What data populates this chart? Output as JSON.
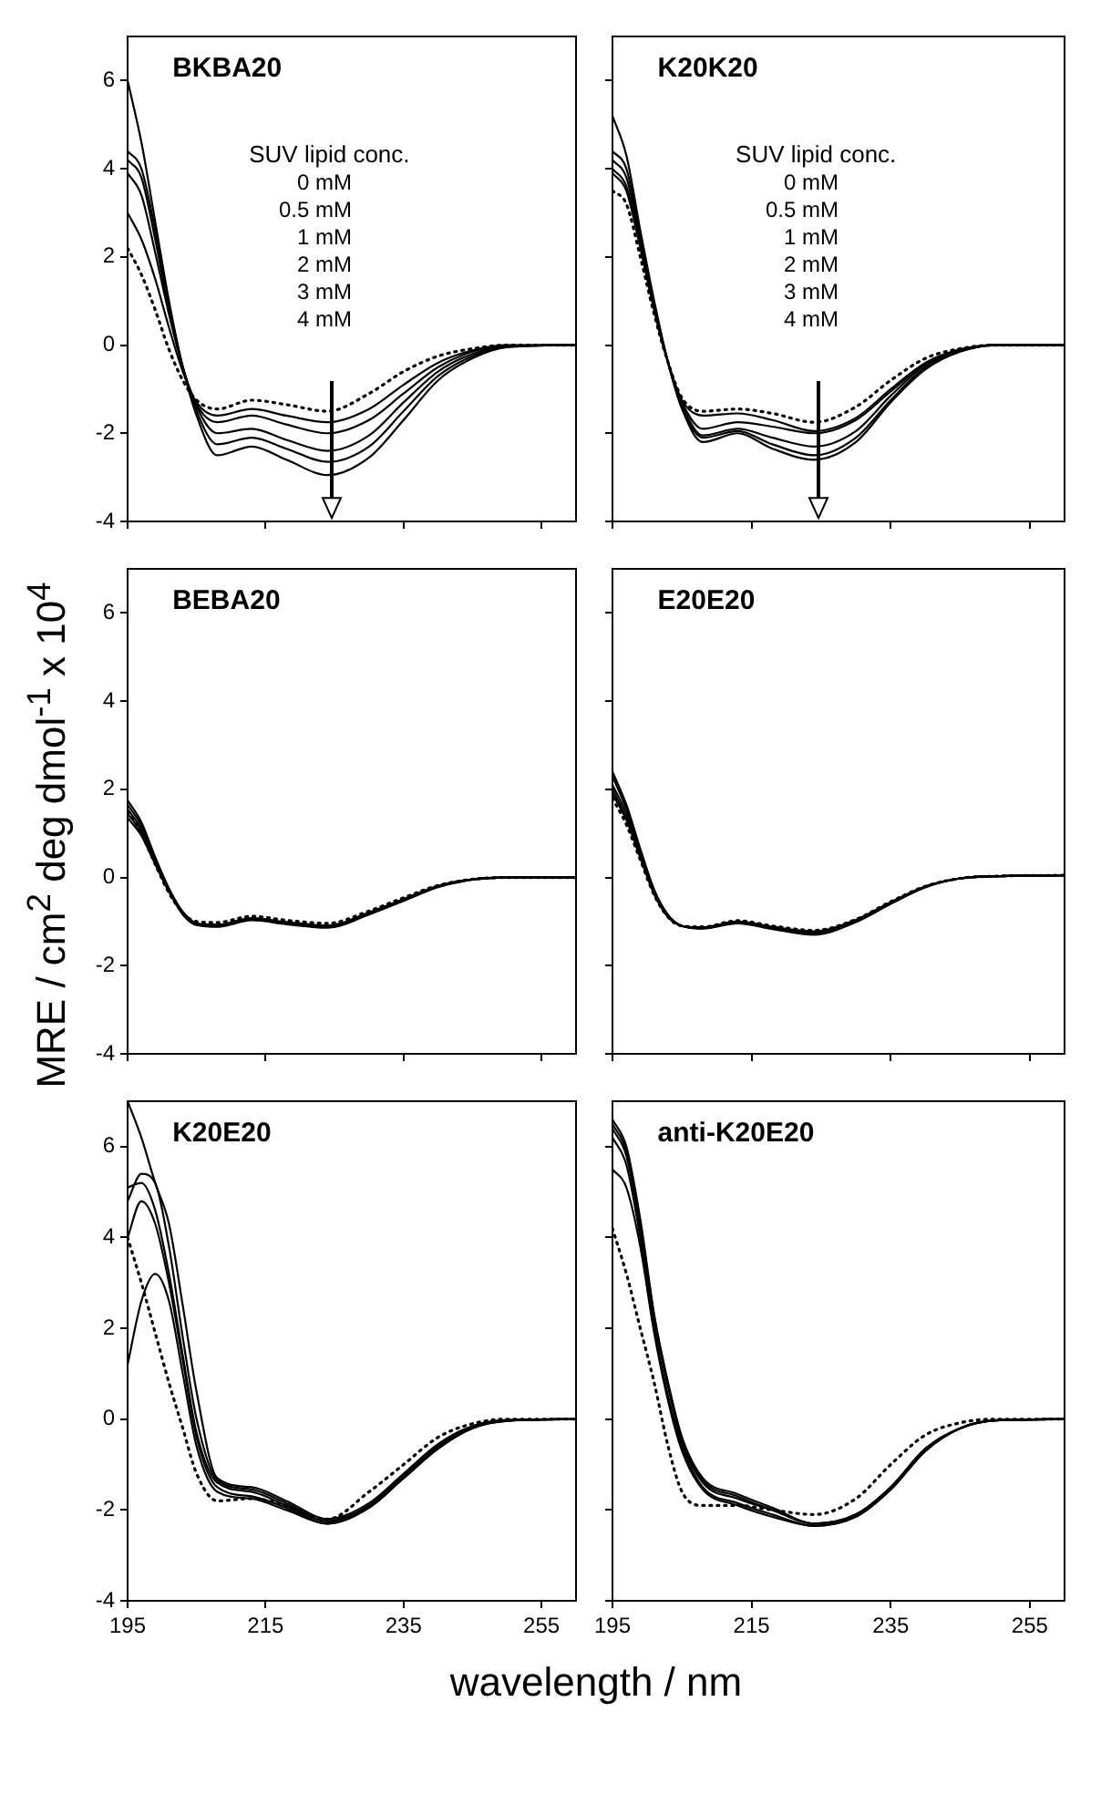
{
  "chart_data": [
    {
      "type": "line",
      "title": "BKBA20",
      "x": [
        195,
        197,
        199,
        201,
        203,
        205,
        208,
        213,
        218,
        224,
        230,
        235,
        240,
        245,
        250,
        260
      ],
      "xlim": [
        195,
        260
      ],
      "ylim": [
        -4,
        7
      ],
      "xticks": [
        195,
        215,
        235,
        255
      ],
      "yticks": [
        -4,
        -2,
        0,
        2,
        4,
        6
      ],
      "tick_labels": "y",
      "annotations": [
        "SUV lipid conc.",
        "0 mM",
        "0.5 mM",
        "1 mM",
        "2 mM",
        "3 mM",
        "4 mM"
      ],
      "series": [
        {
          "color": "#000000",
          "line_style": "dotted",
          "values": [
            2.2,
            1.6,
            0.8,
            -0.1,
            -0.8,
            -1.25,
            -1.45,
            -1.25,
            -1.35,
            -1.5,
            -1.1,
            -0.6,
            -0.25,
            -0.08,
            0,
            0
          ]
        },
        {
          "color": "#000000",
          "line_style": "solid",
          "values": [
            3.0,
            2.4,
            1.5,
            0.4,
            -0.6,
            -1.3,
            -1.6,
            -1.45,
            -1.6,
            -1.75,
            -1.45,
            -0.9,
            -0.4,
            -0.12,
            0,
            0
          ]
        },
        {
          "color": "#000000",
          "line_style": "solid",
          "values": [
            3.9,
            3.4,
            2.1,
            0.7,
            -0.5,
            -1.35,
            -1.75,
            -1.6,
            -1.8,
            -2.0,
            -1.7,
            -1.1,
            -0.5,
            -0.15,
            -0.02,
            0
          ]
        },
        {
          "color": "#000000",
          "line_style": "solid",
          "values": [
            4.2,
            3.8,
            2.4,
            0.8,
            -0.5,
            -1.4,
            -2.0,
            -1.9,
            -2.15,
            -2.4,
            -2.05,
            -1.3,
            -0.6,
            -0.2,
            -0.03,
            0
          ]
        },
        {
          "color": "#000000",
          "line_style": "solid",
          "values": [
            4.4,
            4.0,
            2.6,
            0.9,
            -0.5,
            -1.5,
            -2.25,
            -2.1,
            -2.35,
            -2.65,
            -2.3,
            -1.5,
            -0.7,
            -0.25,
            -0.04,
            0
          ]
        },
        {
          "color": "#000000",
          "line_style": "solid",
          "values": [
            6.0,
            4.6,
            2.8,
            1.0,
            -0.5,
            -1.6,
            -2.5,
            -2.3,
            -2.6,
            -2.95,
            -2.55,
            -1.7,
            -0.8,
            -0.3,
            -0.05,
            0
          ]
        }
      ]
    },
    {
      "type": "line",
      "title": "K20K20",
      "x": [
        195,
        197,
        199,
        201,
        203,
        205,
        208,
        213,
        218,
        224,
        230,
        235,
        240,
        245,
        250,
        260
      ],
      "xlim": [
        195,
        260
      ],
      "ylim": [
        -4,
        7
      ],
      "xticks": [
        195,
        215,
        235,
        255
      ],
      "yticks": [
        -4,
        -2,
        0,
        2,
        4,
        6
      ],
      "tick_labels": false,
      "annotations": [
        "SUV lipid conc.",
        "0 mM",
        "0.5 mM",
        "1 mM",
        "2 mM",
        "3 mM",
        "4 mM"
      ],
      "series": [
        {
          "color": "#000000",
          "line_style": "dotted",
          "values": [
            3.5,
            3.2,
            2.0,
            0.7,
            -0.4,
            -1.2,
            -1.5,
            -1.45,
            -1.55,
            -1.75,
            -1.4,
            -0.8,
            -0.3,
            -0.08,
            0,
            0
          ]
        },
        {
          "color": "#000000",
          "line_style": "solid",
          "values": [
            3.9,
            3.5,
            2.2,
            0.8,
            -0.4,
            -1.25,
            -1.6,
            -1.55,
            -1.7,
            -1.95,
            -1.65,
            -1.0,
            -0.4,
            -0.1,
            0,
            0
          ]
        },
        {
          "color": "#000000",
          "line_style": "solid",
          "values": [
            4.0,
            3.6,
            2.3,
            0.8,
            -0.4,
            -1.3,
            -1.9,
            -1.75,
            -1.85,
            -2.0,
            -1.7,
            -1.05,
            -0.42,
            -0.1,
            0,
            0
          ]
        },
        {
          "color": "#000000",
          "line_style": "solid",
          "values": [
            4.2,
            3.8,
            2.4,
            0.9,
            -0.4,
            -1.35,
            -2.05,
            -1.9,
            -2.1,
            -2.3,
            -1.95,
            -1.15,
            -0.45,
            -0.12,
            0,
            0
          ]
        },
        {
          "color": "#000000",
          "line_style": "solid",
          "values": [
            4.4,
            4.0,
            2.5,
            0.9,
            -0.4,
            -1.4,
            -2.1,
            -1.95,
            -2.25,
            -2.5,
            -2.1,
            -1.25,
            -0.5,
            -0.14,
            0,
            0
          ]
        },
        {
          "color": "#000000",
          "line_style": "solid",
          "values": [
            5.2,
            4.3,
            2.6,
            1.0,
            -0.4,
            -1.45,
            -2.2,
            -2.0,
            -2.35,
            -2.6,
            -2.2,
            -1.3,
            -0.55,
            -0.15,
            0,
            0
          ]
        }
      ]
    },
    {
      "type": "line",
      "title": "BEBA20",
      "ylabel": "MRE / cm$^{2}$ deg dmol$^{-1}$ x 10$^{4}$",
      "x": [
        195,
        197,
        199,
        201,
        203,
        205,
        208,
        213,
        218,
        224,
        230,
        235,
        240,
        245,
        250,
        260
      ],
      "xlim": [
        195,
        260
      ],
      "ylim": [
        -4,
        7
      ],
      "xticks": [
        195,
        215,
        235,
        255
      ],
      "yticks": [
        -4,
        -2,
        0,
        2,
        4,
        6
      ],
      "tick_labels": "y",
      "series": [
        {
          "color": "#000000",
          "line_style": "dotted",
          "values": [
            1.5,
            1.0,
            0.3,
            -0.35,
            -0.8,
            -1.0,
            -1.02,
            -0.88,
            -0.97,
            -1.04,
            -0.76,
            -0.46,
            -0.18,
            -0.04,
            0,
            0
          ]
        },
        {
          "color": "#000000",
          "line_style": "solid",
          "values": [
            1.35,
            0.95,
            0.3,
            -0.33,
            -0.84,
            -1.08,
            -1.12,
            -0.97,
            -1.06,
            -1.14,
            -0.84,
            -0.53,
            -0.22,
            -0.05,
            0,
            0
          ]
        },
        {
          "color": "#000000",
          "line_style": "solid",
          "values": [
            1.45,
            1.02,
            0.34,
            -0.31,
            -0.82,
            -1.07,
            -1.1,
            -0.95,
            -1.04,
            -1.12,
            -0.82,
            -0.52,
            -0.21,
            -0.05,
            0,
            0
          ]
        },
        {
          "color": "#000000",
          "line_style": "solid",
          "values": [
            1.55,
            1.1,
            0.38,
            -0.29,
            -0.8,
            -1.06,
            -1.09,
            -0.94,
            -1.03,
            -1.11,
            -0.81,
            -0.51,
            -0.2,
            -0.04,
            0,
            0
          ]
        },
        {
          "color": "#000000",
          "line_style": "solid",
          "values": [
            1.65,
            1.18,
            0.42,
            -0.27,
            -0.79,
            -1.05,
            -1.08,
            -0.93,
            -1.02,
            -1.1,
            -0.8,
            -0.5,
            -0.2,
            -0.04,
            0,
            0
          ]
        },
        {
          "color": "#000000",
          "line_style": "solid",
          "values": [
            1.75,
            1.25,
            0.46,
            -0.25,
            -0.78,
            -1.04,
            -1.07,
            -0.92,
            -1.01,
            -1.09,
            -0.79,
            -0.49,
            -0.19,
            -0.04,
            0,
            0
          ]
        }
      ]
    },
    {
      "type": "line",
      "title": "E20E20",
      "x": [
        195,
        197,
        199,
        201,
        203,
        205,
        208,
        213,
        218,
        224,
        230,
        235,
        240,
        245,
        250,
        260
      ],
      "xlim": [
        195,
        260
      ],
      "ylim": [
        -4,
        7
      ],
      "xticks": [
        195,
        215,
        235,
        255
      ],
      "yticks": [
        -4,
        -2,
        0,
        2,
        4,
        6
      ],
      "tick_labels": false,
      "series": [
        {
          "color": "#000000",
          "line_style": "dotted",
          "values": [
            1.8,
            1.2,
            0.4,
            -0.4,
            -0.9,
            -1.1,
            -1.12,
            -0.98,
            -1.1,
            -1.2,
            -0.95,
            -0.55,
            -0.2,
            -0.02,
            0.03,
            0.05
          ]
        },
        {
          "color": "#000000",
          "line_style": "solid",
          "values": [
            1.9,
            1.3,
            0.45,
            -0.38,
            -0.9,
            -1.1,
            -1.13,
            -1.0,
            -1.12,
            -1.22,
            -0.96,
            -0.56,
            -0.2,
            -0.02,
            0.03,
            0.05
          ]
        },
        {
          "color": "#000000",
          "line_style": "solid",
          "values": [
            2.0,
            1.35,
            0.5,
            -0.35,
            -0.88,
            -1.1,
            -1.14,
            -1.01,
            -1.13,
            -1.24,
            -0.97,
            -0.57,
            -0.21,
            -0.02,
            0.03,
            0.05
          ]
        },
        {
          "color": "#000000",
          "line_style": "solid",
          "values": [
            2.1,
            1.45,
            0.55,
            -0.32,
            -0.87,
            -1.1,
            -1.15,
            -1.02,
            -1.15,
            -1.26,
            -0.98,
            -0.58,
            -0.21,
            -0.02,
            0.03,
            0.05
          ]
        },
        {
          "color": "#000000",
          "line_style": "solid",
          "values": [
            2.3,
            1.55,
            0.6,
            -0.3,
            -0.86,
            -1.1,
            -1.15,
            -1.03,
            -1.16,
            -1.28,
            -1.0,
            -0.59,
            -0.22,
            -0.02,
            0.03,
            0.05
          ]
        },
        {
          "color": "#000000",
          "line_style": "solid",
          "values": [
            2.4,
            1.65,
            0.65,
            -0.28,
            -0.85,
            -1.1,
            -1.16,
            -1.04,
            -1.17,
            -1.3,
            -1.01,
            -0.6,
            -0.22,
            -0.02,
            0.03,
            0.05
          ]
        }
      ]
    },
    {
      "type": "line",
      "title": "K20E20",
      "xlabel": "wavelength / nm",
      "x": [
        195,
        197,
        199,
        201,
        203,
        205,
        208,
        213,
        218,
        224,
        230,
        235,
        240,
        245,
        250,
        260
      ],
      "xlim": [
        195,
        260
      ],
      "ylim": [
        -4,
        7
      ],
      "xticks": [
        195,
        215,
        235,
        255
      ],
      "yticks": [
        -4,
        -2,
        0,
        2,
        4,
        6
      ],
      "series": [
        {
          "color": "#000000",
          "line_style": "dotted",
          "values": [
            4.0,
            3.0,
            1.9,
            0.8,
            -0.2,
            -1.2,
            -1.8,
            -1.75,
            -1.9,
            -2.2,
            -1.6,
            -1.0,
            -0.4,
            -0.1,
            0,
            0
          ]
        },
        {
          "color": "#000000",
          "line_style": "solid",
          "values": [
            7.0,
            6.2,
            5.2,
            4.3,
            2.5,
            0.6,
            -1.3,
            -1.5,
            -1.8,
            -2.2,
            -1.85,
            -1.2,
            -0.55,
            -0.15,
            -0.02,
            0
          ]
        },
        {
          "color": "#000000",
          "line_style": "solid",
          "values": [
            4.8,
            5.4,
            5.2,
            3.8,
            1.8,
            0.0,
            -1.35,
            -1.55,
            -1.85,
            -2.25,
            -1.9,
            -1.25,
            -0.6,
            -0.17,
            -0.03,
            0
          ]
        },
        {
          "color": "#000000",
          "line_style": "solid",
          "values": [
            5.1,
            5.2,
            4.6,
            3.2,
            1.4,
            -0.3,
            -1.4,
            -1.6,
            -1.9,
            -2.25,
            -1.9,
            -1.25,
            -0.6,
            -0.17,
            -0.03,
            0
          ]
        },
        {
          "color": "#000000",
          "line_style": "solid",
          "values": [
            4.0,
            4.8,
            4.3,
            3.0,
            1.3,
            -0.4,
            -1.5,
            -1.7,
            -1.95,
            -2.3,
            -1.95,
            -1.3,
            -0.65,
            -0.2,
            -0.04,
            0
          ]
        },
        {
          "color": "#000000",
          "line_style": "solid",
          "values": [
            1.2,
            2.6,
            3.2,
            2.6,
            1.0,
            -0.6,
            -1.6,
            -1.75,
            -2.0,
            -2.3,
            -1.95,
            -1.3,
            -0.65,
            -0.2,
            -0.04,
            0
          ]
        }
      ]
    },
    {
      "type": "line",
      "title": "anti-K20E20",
      "x": [
        195,
        197,
        199,
        201,
        203,
        205,
        208,
        213,
        218,
        224,
        230,
        235,
        240,
        245,
        250,
        260
      ],
      "xlim": [
        195,
        260
      ],
      "ylim": [
        -4,
        7
      ],
      "xticks": [
        195,
        215,
        235,
        255
      ],
      "yticks": [
        -4,
        -2,
        0,
        2,
        4,
        6
      ],
      "tick_labels": "x",
      "series": [
        {
          "color": "#000000",
          "line_style": "dotted",
          "values": [
            4.2,
            3.2,
            2.0,
            0.8,
            -0.6,
            -1.6,
            -1.9,
            -1.9,
            -2.0,
            -2.1,
            -1.75,
            -1.0,
            -0.35,
            -0.08,
            0,
            0
          ]
        },
        {
          "color": "#000000",
          "line_style": "solid",
          "values": [
            6.6,
            6.0,
            4.4,
            2.3,
            0.8,
            -0.4,
            -1.3,
            -1.65,
            -1.95,
            -2.3,
            -2.1,
            -1.5,
            -0.65,
            -0.2,
            -0.03,
            0
          ]
        },
        {
          "color": "#000000",
          "line_style": "solid",
          "values": [
            6.4,
            5.8,
            4.2,
            2.2,
            0.7,
            -0.5,
            -1.4,
            -1.75,
            -2.0,
            -2.3,
            -2.1,
            -1.5,
            -0.65,
            -0.2,
            -0.03,
            0
          ]
        },
        {
          "color": "#000000",
          "line_style": "solid",
          "values": [
            6.2,
            5.6,
            4.0,
            2.0,
            0.5,
            -0.6,
            -1.5,
            -1.85,
            -2.1,
            -2.35,
            -2.15,
            -1.55,
            -0.7,
            -0.2,
            -0.03,
            0
          ]
        },
        {
          "color": "#000000",
          "line_style": "solid",
          "values": [
            5.5,
            5.1,
            3.8,
            1.9,
            0.4,
            -0.7,
            -1.55,
            -1.9,
            -2.15,
            -2.35,
            -2.15,
            -1.55,
            -0.7,
            -0.2,
            -0.03,
            0
          ]
        },
        {
          "color": "#000000",
          "line_style": "solid",
          "values": [
            6.5,
            5.9,
            4.3,
            2.25,
            0.75,
            -0.45,
            -1.35,
            -1.7,
            -2.0,
            -2.3,
            -2.1,
            -1.5,
            -0.65,
            -0.2,
            -0.03,
            0
          ]
        }
      ]
    }
  ]
}
